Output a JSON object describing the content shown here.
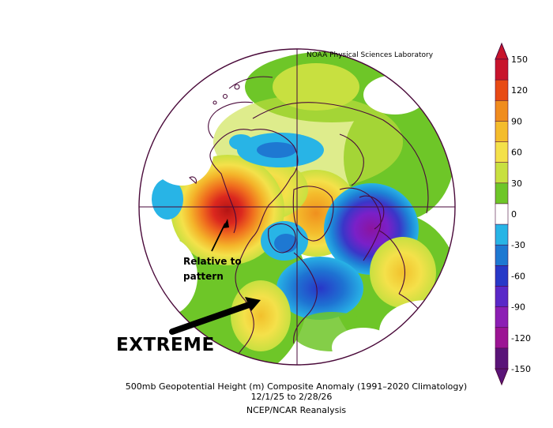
{
  "map": {
    "credit": "NOAA Physical Sciences Laboratory",
    "annotations": {
      "relative_line1": "Relative to",
      "relative_line2": "pattern",
      "extreme": "EXTREME"
    },
    "footer": {
      "title": "500mb Geopotential Height (m) Composite Anomaly (1991–2020 Climatology)",
      "dates": "12/1/25   to 2/28/26",
      "source": "NCEP/NCAR Reanalysis"
    },
    "colorbar": {
      "labels": [
        "150",
        "120",
        "90",
        "60",
        "30",
        "0",
        "-30",
        "-60",
        "-90",
        "-120",
        "-150"
      ],
      "colors": [
        "#c8142c",
        "#e84a14",
        "#f08c1e",
        "#f4bc2c",
        "#f4e14a",
        "#c8e040",
        "#6ec628",
        "#ffffff",
        "#28b4e6",
        "#1e78d2",
        "#2838c8",
        "#5a28c8",
        "#8c1eb4",
        "#9c1494",
        "#5a1478"
      ]
    },
    "anomaly_colors": {
      "strong_positive": "#d21e1e",
      "positive": "#f0a028",
      "weak_positive": "#f4e14a",
      "slight_positive": "#6ec628",
      "weak_negative": "#28b4e6",
      "negative": "#2838c8",
      "strong_negative": "#8c1eb4"
    }
  }
}
